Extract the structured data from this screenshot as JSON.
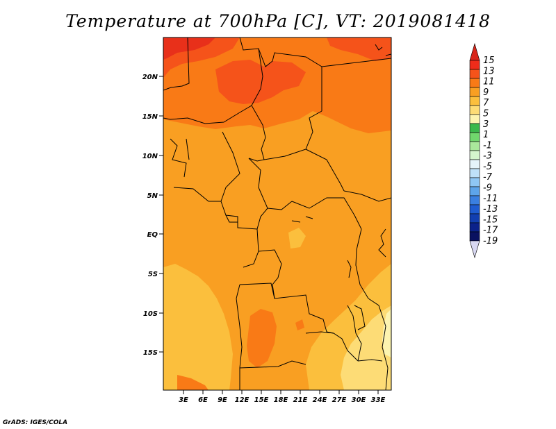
{
  "title": "Temperature at 700hPa [C], VT: 2019081418",
  "credit": "GrADS: IGES/COLA",
  "map": {
    "lat_labels": [
      "20N",
      "15N",
      "10N",
      "5N",
      "EQ",
      "5S",
      "10S",
      "15S"
    ],
    "lon_labels": [
      "3E",
      "6E",
      "9E",
      "12E",
      "15E",
      "18E",
      "21E",
      "24E",
      "27E",
      "30E",
      "33E"
    ]
  },
  "colorbar": {
    "labels": [
      "15",
      "13",
      "11",
      "9",
      "7",
      "5",
      "3",
      "1",
      "-1",
      "-3",
      "-5",
      "-7",
      "-9",
      "-11",
      "-13",
      "-15",
      "-17",
      "-19"
    ],
    "colors": [
      "#ee2c1a",
      "#f5531a",
      "#f97a16",
      "#f99f22",
      "#fbbf3d",
      "#fddc76",
      "#fdf4b0",
      "#3bb84b",
      "#71d76d",
      "#aae89c",
      "#d4f5cc",
      "#e5f4fb",
      "#bfe1f9",
      "#8fc7f5",
      "#5da4ea",
      "#3a7fe0",
      "#1f5cd0",
      "#123fb0",
      "#0b228a",
      "#091160"
    ],
    "top_triangle_color": "#d9261a",
    "bottom_triangle_color": "#d8d8f2"
  }
}
